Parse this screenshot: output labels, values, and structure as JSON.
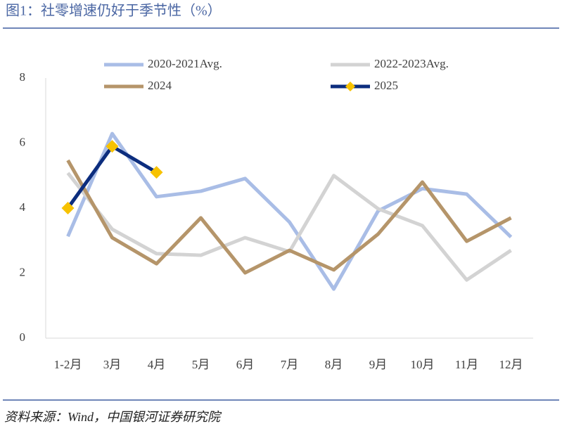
{
  "chart_data": {
    "type": "line",
    "title": "图1：社零增速仍好于季节性（%）",
    "source": "资料来源：Wind，中国银河证券研究院",
    "categories": [
      "1-2月",
      "3月",
      "4月",
      "5月",
      "6月",
      "7月",
      "8月",
      "9月",
      "10月",
      "11月",
      "12月"
    ],
    "series": [
      {
        "name": "2020-2021Avg.",
        "color": "#a9bde6",
        "values": [
          3.13,
          6.29,
          4.35,
          4.52,
          4.91,
          3.57,
          1.51,
          3.91,
          4.6,
          4.43,
          3.11
        ]
      },
      {
        "name": "2022-2023Avg.",
        "color": "#d3d3d3",
        "values": [
          5.08,
          3.35,
          2.6,
          2.55,
          3.09,
          2.66,
          5.0,
          3.98,
          3.46,
          1.79,
          2.7
        ]
      },
      {
        "name": "2024",
        "color": "#b5956a",
        "values": [
          5.47,
          3.09,
          2.29,
          3.7,
          2.01,
          2.7,
          2.1,
          3.2,
          4.8,
          2.98,
          3.7
        ]
      },
      {
        "name": "2025",
        "color": "#0c2d7e",
        "marker": "diamond",
        "marker_color": "#f7c200",
        "values": [
          4.0,
          5.9,
          5.1,
          null,
          null,
          null,
          null,
          null,
          null,
          null,
          null
        ]
      }
    ],
    "ylim": [
      0,
      8
    ],
    "yticks": [
      0,
      2,
      4,
      6,
      8
    ],
    "grid": false,
    "legend": "top"
  }
}
